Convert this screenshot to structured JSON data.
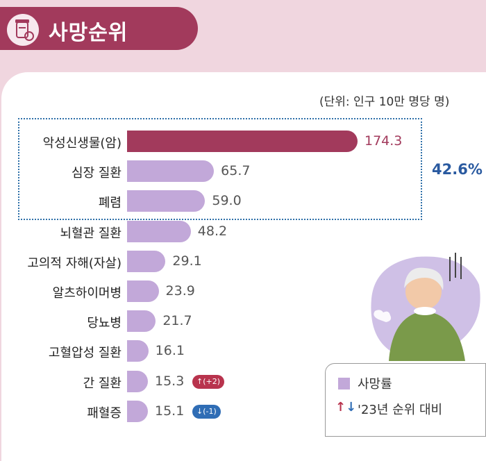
{
  "header": {
    "title": "사망순위",
    "icon": "medicine-bottle-icon"
  },
  "unit_note": "(단위: 인구 10만 명당 명)",
  "highlight_share": "42.6%",
  "colors": {
    "top_bar": "#a23a5c",
    "bar": "#c2a8d9",
    "up_badge": "#b8334d",
    "down_badge": "#2f6db5"
  },
  "legend": {
    "rate_label": "사망률",
    "rank_change_label": "'23년 순위 대비"
  },
  "chart_data": {
    "type": "bar",
    "orientation": "horizontal",
    "categories": [
      "악성신생물(암)",
      "심장 질환",
      "폐렴",
      "뇌혈관 질환",
      "고의적 자해(자살)",
      "알츠하이머병",
      "당뇨병",
      "고혈압성 질환",
      "간 질환",
      "패혈증"
    ],
    "values": [
      174.3,
      65.7,
      59.0,
      48.2,
      29.1,
      23.9,
      21.7,
      16.1,
      15.3,
      15.1
    ],
    "value_labels": [
      "174.3",
      "65.7",
      "59.0",
      "48.2",
      "29.1",
      "23.9",
      "21.7",
      "16.1",
      "15.3",
      "15.1"
    ],
    "rank_changes": [
      null,
      null,
      null,
      null,
      null,
      null,
      null,
      null,
      "(+2)",
      "(-1)"
    ],
    "xlim": [
      0,
      174.3
    ],
    "highlighted_top": 3,
    "annotation": "42.6%",
    "unit": "(단위: 인구 10만 명당 명)",
    "grid": false,
    "legend_position": "bottom-right"
  }
}
